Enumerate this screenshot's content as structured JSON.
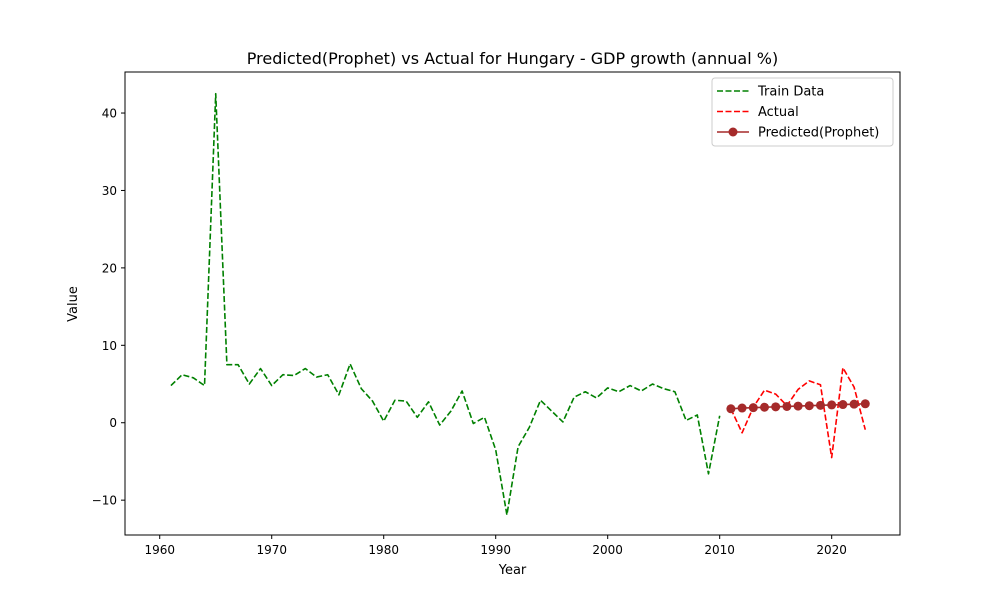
{
  "chart_data": {
    "type": "line",
    "title": "Predicted(Prophet) vs Actual for Hungary - GDP growth (annual %)",
    "xlabel": "Year",
    "ylabel": "Value",
    "xlim": [
      1956.9,
      2026.1
    ],
    "ylim": [
      -14.5,
      45.3
    ],
    "xticks": [
      1960,
      1970,
      1980,
      1990,
      2000,
      2010,
      2020
    ],
    "yticks": [
      -10,
      0,
      10,
      20,
      30,
      40
    ],
    "grid": false,
    "legend_position": "top-right",
    "series": [
      {
        "name": "Train Data",
        "color": "#008000",
        "style": "dashed",
        "marker": "none",
        "x": [
          1961,
          1962,
          1963,
          1964,
          1965,
          1966,
          1967,
          1968,
          1969,
          1970,
          1971,
          1972,
          1973,
          1974,
          1975,
          1976,
          1977,
          1978,
          1979,
          1980,
          1981,
          1982,
          1983,
          1984,
          1985,
          1986,
          1987,
          1988,
          1989,
          1990,
          1991,
          1992,
          1993,
          1994,
          1995,
          1996,
          1997,
          1998,
          1999,
          2000,
          2001,
          2002,
          2003,
          2004,
          2005,
          2006,
          2007,
          2008,
          2009,
          2010
        ],
        "y": [
          4.8,
          6.2,
          5.8,
          4.8,
          42.5,
          7.5,
          7.5,
          5.0,
          7.0,
          4.8,
          6.2,
          6.1,
          7.0,
          5.9,
          6.2,
          3.6,
          7.6,
          4.4,
          2.8,
          0.2,
          2.9,
          2.8,
          0.7,
          2.7,
          -0.3,
          1.5,
          4.1,
          -0.1,
          0.7,
          -3.5,
          -11.9,
          -3.1,
          -0.6,
          2.9,
          1.5,
          0.1,
          3.3,
          4.0,
          3.2,
          4.5,
          4.0,
          4.8,
          4.1,
          5.0,
          4.4,
          4.0,
          0.3,
          1.0,
          -6.6,
          0.9
        ]
      },
      {
        "name": "Actual",
        "color": "#ff0000",
        "style": "dashed",
        "marker": "none",
        "x": [
          2011,
          2012,
          2013,
          2014,
          2015,
          2016,
          2017,
          2018,
          2019,
          2020,
          2021,
          2022,
          2023
        ],
        "y": [
          1.8,
          -1.3,
          2.0,
          4.2,
          3.7,
          2.2,
          4.3,
          5.4,
          4.9,
          -4.5,
          7.1,
          4.6,
          -0.9
        ]
      },
      {
        "name": "Predicted(Prophet)",
        "color": "#a52a2a",
        "style": "solid",
        "marker": "circle",
        "x": [
          2011,
          2012,
          2013,
          2014,
          2015,
          2016,
          2017,
          2018,
          2019,
          2020,
          2021,
          2022,
          2023
        ],
        "y": [
          1.8,
          1.9,
          1.95,
          2.0,
          2.05,
          2.1,
          2.15,
          2.2,
          2.25,
          2.3,
          2.35,
          2.4,
          2.45
        ]
      }
    ]
  }
}
